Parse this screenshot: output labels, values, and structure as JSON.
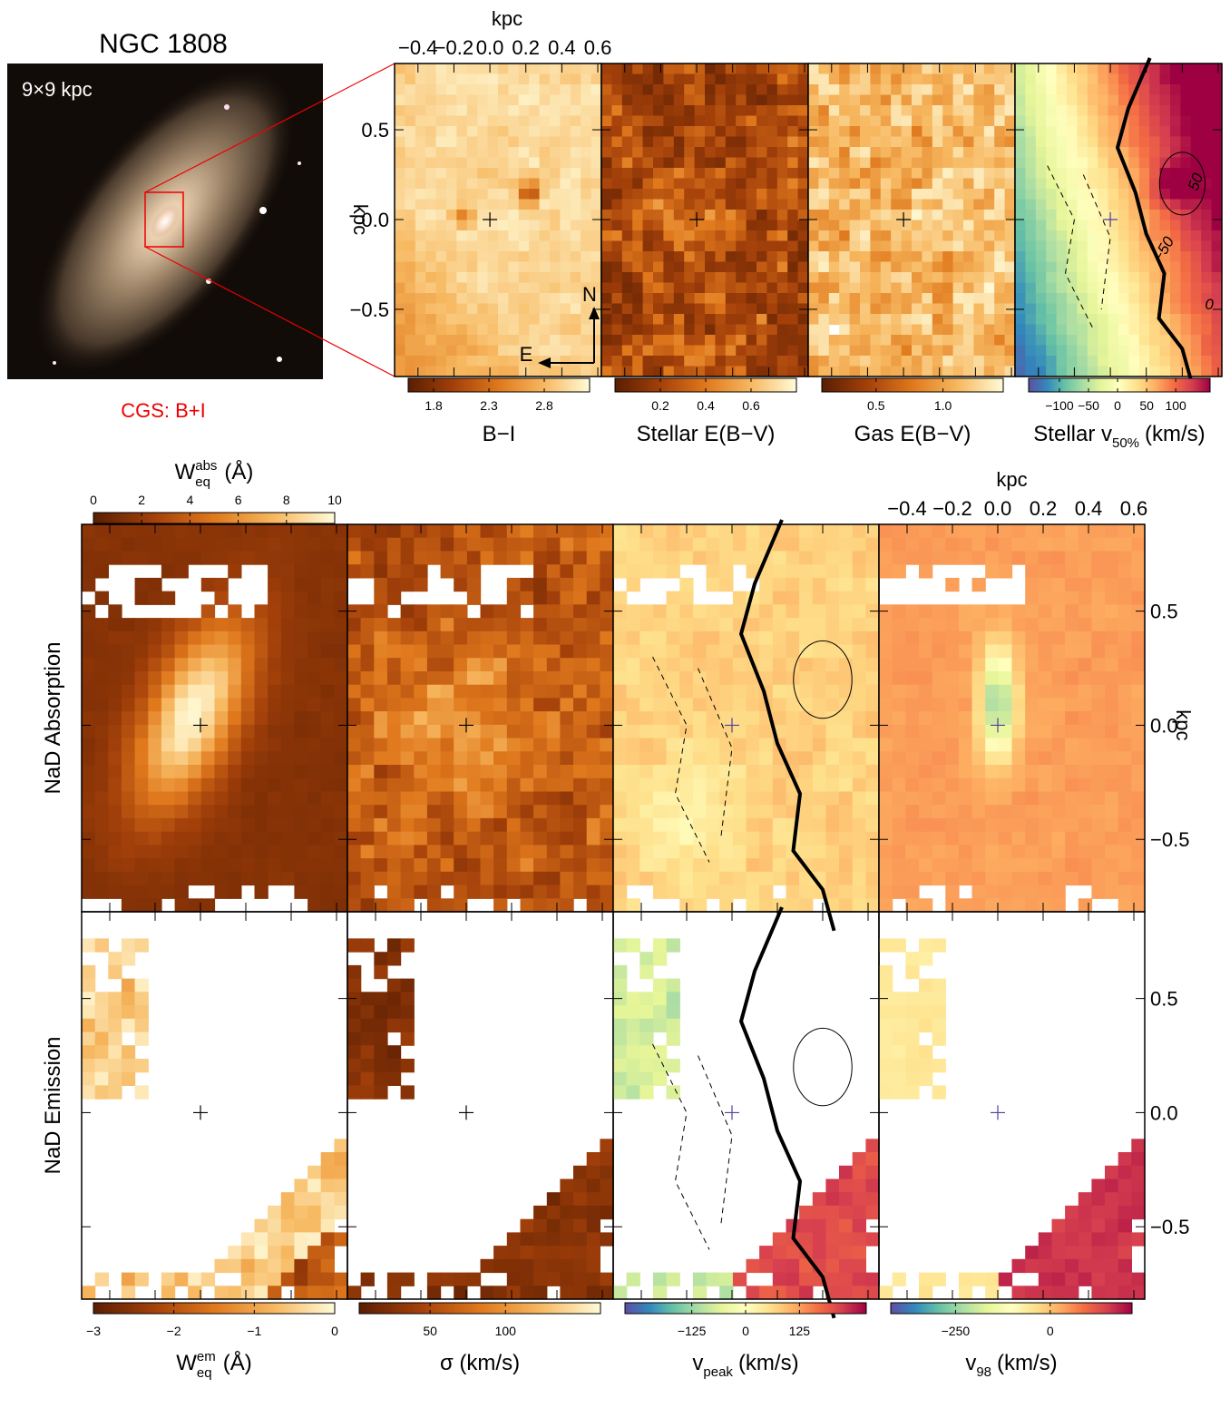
{
  "title": "NGC 1808",
  "image_scale": "9×9 kpc",
  "image_credit": "CGS: B+I",
  "chart_data": [
    {
      "type": "heatmap",
      "colormap": "orange",
      "xlabel": "kpc",
      "xlim": [
        -0.53,
        0.62
      ],
      "xticks": [
        {
          "value": -0.4,
          "label": "−0.4"
        },
        {
          "value": -0.2,
          "label": "−0.2"
        },
        {
          "value": 0,
          "label": "0.0"
        },
        {
          "value": 0.2,
          "label": "0.2"
        },
        {
          "value": 0.4,
          "label": "0.4"
        },
        {
          "value": 0.6,
          "label": "0.6"
        }
      ],
      "ylabel": "kpc",
      "ylim": [
        -0.874,
        0.869
      ],
      "yticks": [
        {
          "value": -0.5,
          "label": "−0.5"
        },
        {
          "value": 0,
          "label": "0.0"
        },
        0.5
      ],
      "compass": [
        "N",
        "E"
      ],
      "colorbar": {
        "label": "B−I",
        "lim": [
          1.57,
          3.21
        ],
        "ticks": [
          1.8,
          2.3,
          2.8
        ]
      }
    },
    {
      "type": "heatmap",
      "colormap": "orange",
      "colorbar": {
        "label": "Stellar E(B−V)",
        "lim": [
          0.0,
          0.8
        ],
        "ticks": [
          0.2,
          0.4,
          0.6
        ]
      }
    },
    {
      "type": "heatmap",
      "colormap": "orange",
      "colorbar": {
        "label": "Gas E(B−V)",
        "lim": [
          0.095,
          1.45
        ],
        "ticks": [
          0.5,
          {
            "value": 1,
            "label": "1.0"
          }
        ]
      }
    },
    {
      "type": "heatmap",
      "colormap": "spectral",
      "contour_labels": [
        "50",
        "−50",
        "0"
      ],
      "colorbar": {
        "label": "Stellar v",
        "label_sub": "50%",
        "label_unit": "(km/s)",
        "lim": [
          -153,
          159
        ],
        "ticks": [
          {
            "value": -100,
            "label": "−100"
          },
          {
            "value": -50,
            "label": "−50"
          },
          0,
          50,
          100
        ]
      }
    },
    {
      "type": "heatmap",
      "colormap": "orange",
      "row_label": "NaD Absorption",
      "colorbar": {
        "label": "W",
        "label_sub": "eq",
        "label_sup": "abs",
        "label_unit": "(Å)",
        "lim": [
          0,
          10
        ],
        "ticks": [
          0,
          2,
          4,
          6,
          8,
          10
        ]
      }
    },
    {
      "type": "heatmap",
      "colormap": "orange"
    },
    {
      "type": "heatmap",
      "colormap": "spectral"
    },
    {
      "type": "heatmap",
      "colormap": "spectral",
      "xlabel": "kpc",
      "xlim": [
        -0.524,
        0.648
      ],
      "xticks": [
        {
          "value": -0.4,
          "label": "−0.4"
        },
        {
          "value": -0.2,
          "label": "−0.2"
        },
        {
          "value": 0,
          "label": "0.0"
        },
        {
          "value": 0.2,
          "label": "0.2"
        },
        {
          "value": 0.4,
          "label": "0.4"
        },
        {
          "value": 0.6,
          "label": "0.6"
        }
      ],
      "ylabel": "kpc",
      "ylim": [
        -0.817,
        0.88
      ],
      "yticks": [
        {
          "value": -0.5,
          "label": "−0.5"
        },
        {
          "value": 0,
          "label": "0.0"
        },
        0.5
      ]
    },
    {
      "type": "heatmap",
      "colormap": "orange",
      "row_label": "NaD Emission",
      "colorbar": {
        "label": "W",
        "label_sub": "eq",
        "label_sup": "em",
        "label_unit": "(Å)",
        "lim": [
          -3,
          0
        ],
        "ticks": [
          {
            "value": -3,
            "label": "−3"
          },
          {
            "value": -2,
            "label": "−2"
          },
          {
            "value": -1,
            "label": "−1"
          },
          0
        ]
      }
    },
    {
      "type": "heatmap",
      "colormap": "orange",
      "colorbar": {
        "label": "σ (km/s)",
        "lim": [
          3,
          163
        ],
        "ticks": [
          50,
          100
        ]
      }
    },
    {
      "type": "heatmap",
      "colormap": "spectral",
      "colorbar": {
        "label": "v",
        "label_sub": "peak",
        "label_unit": "(km/s)",
        "lim": [
          -280,
          280
        ],
        "ticks": [
          {
            "value": -125,
            "label": "−125"
          },
          0,
          125
        ]
      }
    },
    {
      "type": "heatmap",
      "colormap": "spectral",
      "ylim": [
        -0.817,
        0.88
      ],
      "yticks": [
        {
          "value": -0.5,
          "label": "−0.5"
        },
        {
          "value": 0,
          "label": "0.0"
        },
        0.5
      ],
      "colorbar": {
        "label": "v",
        "label_sub": "98",
        "label_unit": "(km/s)",
        "lim": [
          -421,
          216
        ],
        "ticks": [
          {
            "value": -250,
            "label": "−250"
          },
          0
        ]
      }
    }
  ]
}
